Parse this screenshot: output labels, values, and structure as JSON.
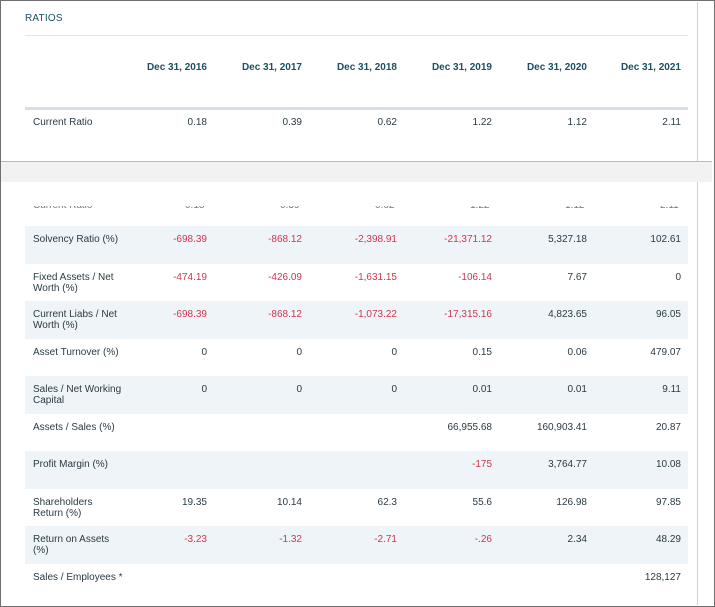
{
  "section": {
    "title": "RATIOS"
  },
  "columns": [
    "Dec 31, 2016",
    "Dec 31, 2017",
    "Dec 31, 2018",
    "Dec 31, 2019",
    "Dec 31, 2020",
    "Dec 31, 2021"
  ],
  "current_ratio": {
    "label": "Current Ratio",
    "values": [
      "0.18",
      "0.39",
      "0.62",
      "1.22",
      "1.12",
      "2.11"
    ]
  },
  "rows": [
    {
      "label": "Solvency Ratio (%)",
      "values": [
        "-698.39",
        "-868.12",
        "-2,398.91",
        "-21,371.12",
        "5,327.18",
        "102.61"
      ]
    },
    {
      "label": "Fixed Assets / Net Worth (%)",
      "values": [
        "-474.19",
        "-426.09",
        "-1,631.15",
        "-106.14",
        "7.67",
        "0"
      ]
    },
    {
      "label": "Current Liabs / Net Worth (%)",
      "values": [
        "-698.39",
        "-868.12",
        "-1,073.22",
        "-17,315.16",
        "4,823.65",
        "96.05"
      ]
    },
    {
      "label": "Asset Turnover (%)",
      "values": [
        "0",
        "0",
        "0",
        "0.15",
        "0.06",
        "479.07"
      ]
    },
    {
      "label": "Sales / Net Working Capital",
      "values": [
        "0",
        "0",
        "0",
        "0.01",
        "0.01",
        "9.11"
      ]
    },
    {
      "label": "Assets / Sales (%)",
      "values": [
        "",
        "",
        "",
        "66,955.68",
        "160,903.41",
        "20.87"
      ]
    },
    {
      "label": "Profit Margin (%)",
      "values": [
        "",
        "",
        "",
        "-175",
        "3,764.77",
        "10.08"
      ]
    },
    {
      "label": "Shareholders Return (%)",
      "values": [
        "19.35",
        "10.14",
        "62.3",
        "55.6",
        "126.98",
        "97.85"
      ]
    },
    {
      "label": "Return on Assets (%)",
      "values": [
        "-3.23",
        "-1.32",
        "-2.71",
        "-.26",
        "2.34",
        "48.29"
      ]
    },
    {
      "label": "Sales / Employees *",
      "values": [
        "",
        "",
        "",
        "",
        "",
        "128,127"
      ]
    }
  ],
  "colors": {
    "header_text": "#1d4f5f",
    "negative": "#d0364e",
    "row_alt": "#eef4f7"
  }
}
